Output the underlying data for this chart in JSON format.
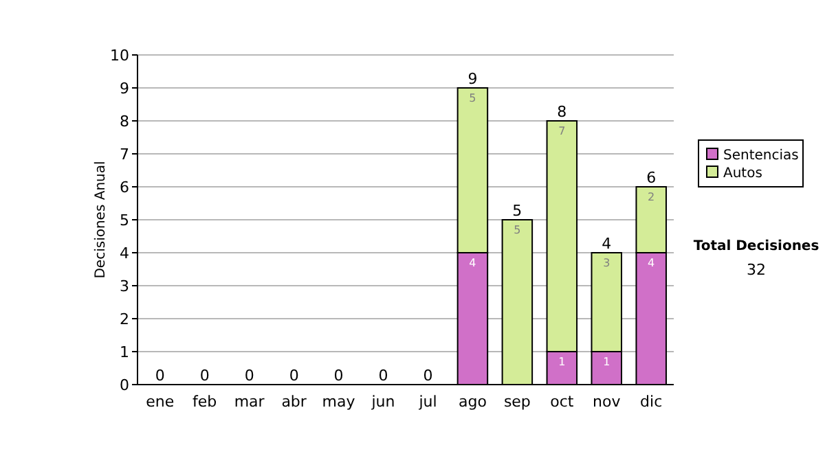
{
  "chart_data": {
    "type": "bar",
    "stacked": true,
    "ylabel": "Decisiones Anual",
    "categories": [
      "ene",
      "feb",
      "mar",
      "abr",
      "may",
      "jun",
      "jul",
      "ago",
      "sep",
      "oct",
      "nov",
      "dic"
    ],
    "series": [
      {
        "name": "Sentencias",
        "color": "#d070c8",
        "values": [
          0,
          0,
          0,
          0,
          0,
          0,
          0,
          4,
          0,
          1,
          1,
          4
        ],
        "value_labels": [
          null,
          null,
          null,
          null,
          null,
          null,
          null,
          "4",
          null,
          "1",
          "1",
          "4"
        ]
      },
      {
        "name": "Autos",
        "color": "#d4ec98",
        "values": [
          0,
          0,
          0,
          0,
          0,
          0,
          0,
          5,
          5,
          7,
          3,
          2
        ],
        "value_labels": [
          null,
          null,
          null,
          null,
          null,
          null,
          null,
          "5",
          "5",
          "7",
          "3",
          "2"
        ]
      }
    ],
    "totals": [
      "0",
      "0",
      "0",
      "0",
      "0",
      "0",
      "0",
      "9",
      "5",
      "8",
      "4",
      "6"
    ],
    "ylim": [
      0,
      10
    ],
    "yticks": [
      0,
      1,
      2,
      3,
      4,
      5,
      6,
      7,
      8,
      9,
      10
    ],
    "grid": "y",
    "legend": "right",
    "annotations": [
      "Total Decisiones",
      "32"
    ]
  }
}
